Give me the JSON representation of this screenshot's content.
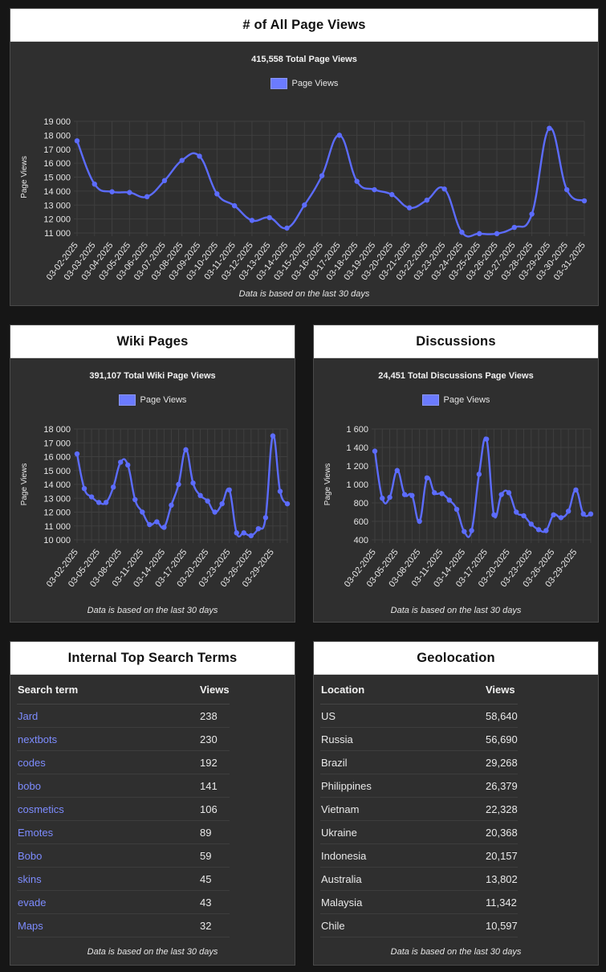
{
  "colors": {
    "line": "#5c6cff",
    "grid": "#3f3f3f",
    "link": "#7d8cff"
  },
  "all_views": {
    "title": "# of All Page Views",
    "total": "415,558 Total Page Views",
    "legend": "Page Views",
    "footnote": "Data is based on the last 30 days"
  },
  "wiki": {
    "title": "Wiki Pages",
    "total": "391,107 Total Wiki Page Views",
    "legend": "Page Views",
    "footnote": "Data is based on the last 30 days"
  },
  "discussions": {
    "title": "Discussions",
    "total": "24,451 Total Discussions Page Views",
    "legend": "Page Views",
    "footnote": "Data is based on the last 30 days"
  },
  "search": {
    "title": "Internal Top Search Terms",
    "col_term": "Search term",
    "col_views": "Views",
    "footnote": "Data is based on the last 30 days",
    "rows": [
      {
        "term": "Jard",
        "views": "238"
      },
      {
        "term": "nextbots",
        "views": "230"
      },
      {
        "term": "codes",
        "views": "192"
      },
      {
        "term": "bobo",
        "views": "141"
      },
      {
        "term": "cosmetics",
        "views": "106"
      },
      {
        "term": "Emotes",
        "views": "89"
      },
      {
        "term": "Bobo",
        "views": "59"
      },
      {
        "term": "skins",
        "views": "45"
      },
      {
        "term": "evade",
        "views": "43"
      },
      {
        "term": "Maps",
        "views": "32"
      }
    ]
  },
  "geo": {
    "title": "Geolocation",
    "col_loc": "Location",
    "col_views": "Views",
    "footnote": "Data is based on the last 30 days",
    "rows": [
      {
        "loc": "US",
        "views": "58,640"
      },
      {
        "loc": "Russia",
        "views": "56,690"
      },
      {
        "loc": "Brazil",
        "views": "29,268"
      },
      {
        "loc": "Philippines",
        "views": "26,379"
      },
      {
        "loc": "Vietnam",
        "views": "22,328"
      },
      {
        "loc": "Ukraine",
        "views": "20,368"
      },
      {
        "loc": "Indonesia",
        "views": "20,157"
      },
      {
        "loc": "Australia",
        "views": "13,802"
      },
      {
        "loc": "Malaysia",
        "views": "11,342"
      },
      {
        "loc": "Chile",
        "views": "10,597"
      }
    ]
  },
  "chart_data": [
    {
      "id": "all",
      "type": "line",
      "ylabel": "Page Views",
      "yticks": [
        11000,
        12000,
        13000,
        14000,
        15000,
        16000,
        17000,
        18000,
        19000
      ],
      "ytick_labels": [
        "11 000",
        "12 000",
        "13 000",
        "14 000",
        "15 000",
        "16 000",
        "17 000",
        "18 000",
        "19 000"
      ],
      "ylim": [
        11000,
        19000
      ],
      "x": [
        "03-02-2025",
        "03-03-2025",
        "03-04-2025",
        "03-05-2025",
        "03-06-2025",
        "03-07-2025",
        "03-08-2025",
        "03-09-2025",
        "03-10-2025",
        "03-11-2025",
        "03-12-2025",
        "03-13-2025",
        "03-14-2025",
        "03-15-2025",
        "03-16-2025",
        "03-17-2025",
        "03-18-2025",
        "03-19-2025",
        "03-20-2025",
        "03-21-2025",
        "03-22-2025",
        "03-23-2025",
        "03-24-2025",
        "03-25-2025",
        "03-26-2025",
        "03-27-2025",
        "03-28-2025",
        "03-29-2025",
        "03-30-2025",
        "03-31-2025"
      ],
      "xtick_every": 1,
      "series": [
        {
          "name": "Page Views",
          "values": [
            17600,
            14500,
            13950,
            13900,
            13600,
            14750,
            16200,
            16500,
            13800,
            12950,
            11900,
            12100,
            11350,
            13000,
            15100,
            18000,
            14700,
            14100,
            13750,
            12800,
            13350,
            14150,
            11050,
            10950,
            10950,
            11400,
            12350,
            18500,
            14100,
            13300
          ]
        }
      ]
    },
    {
      "id": "wiki",
      "type": "line",
      "ylabel": "Page Views",
      "yticks": [
        10000,
        11000,
        12000,
        13000,
        14000,
        15000,
        16000,
        17000,
        18000
      ],
      "ytick_labels": [
        "10 000",
        "11 000",
        "12 000",
        "13 000",
        "14 000",
        "15 000",
        "16 000",
        "17 000",
        "18 000"
      ],
      "ylim": [
        10000,
        18000
      ],
      "x": [
        "03-02-2025",
        "03-03-2025",
        "03-04-2025",
        "03-05-2025",
        "03-06-2025",
        "03-07-2025",
        "03-08-2025",
        "03-09-2025",
        "03-10-2025",
        "03-11-2025",
        "03-12-2025",
        "03-13-2025",
        "03-14-2025",
        "03-15-2025",
        "03-16-2025",
        "03-17-2025",
        "03-18-2025",
        "03-19-2025",
        "03-20-2025",
        "03-21-2025",
        "03-22-2025",
        "03-23-2025",
        "03-24-2025",
        "03-25-2025",
        "03-26-2025",
        "03-27-2025",
        "03-28-2025",
        "03-29-2025",
        "03-30-2025",
        "03-31-2025"
      ],
      "xtick_every": 3,
      "series": [
        {
          "name": "Page Views",
          "values": [
            16200,
            13700,
            13100,
            12700,
            12700,
            13800,
            15600,
            15400,
            12900,
            12000,
            11100,
            11300,
            10900,
            12500,
            14000,
            16500,
            14100,
            13200,
            12800,
            12000,
            12600,
            13600,
            10500,
            10500,
            10300,
            10800,
            11600,
            17500,
            13500,
            12600
          ]
        }
      ]
    },
    {
      "id": "disc",
      "type": "line",
      "ylabel": "Page Views",
      "yticks": [
        400,
        600,
        800,
        1000,
        1200,
        1400,
        1600
      ],
      "ytick_labels": [
        "400",
        "600",
        "800",
        "1 000",
        "1 200",
        "1 400",
        "1 600"
      ],
      "ylim": [
        400,
        1600
      ],
      "x": [
        "03-02-2025",
        "03-03-2025",
        "03-04-2025",
        "03-05-2025",
        "03-06-2025",
        "03-07-2025",
        "03-08-2025",
        "03-09-2025",
        "03-10-2025",
        "03-11-2025",
        "03-12-2025",
        "03-13-2025",
        "03-14-2025",
        "03-15-2025",
        "03-16-2025",
        "03-17-2025",
        "03-18-2025",
        "03-19-2025",
        "03-20-2025",
        "03-21-2025",
        "03-22-2025",
        "03-23-2025",
        "03-24-2025",
        "03-25-2025",
        "03-26-2025",
        "03-27-2025",
        "03-28-2025",
        "03-29-2025",
        "03-30-2025",
        "03-31-2025"
      ],
      "xtick_every": 3,
      "series": [
        {
          "name": "Page Views",
          "values": [
            1360,
            850,
            860,
            1150,
            890,
            880,
            600,
            1070,
            910,
            900,
            830,
            730,
            490,
            500,
            1110,
            1490,
            670,
            890,
            910,
            700,
            660,
            570,
            510,
            500,
            670,
            640,
            710,
            940,
            680,
            680
          ]
        }
      ]
    }
  ]
}
